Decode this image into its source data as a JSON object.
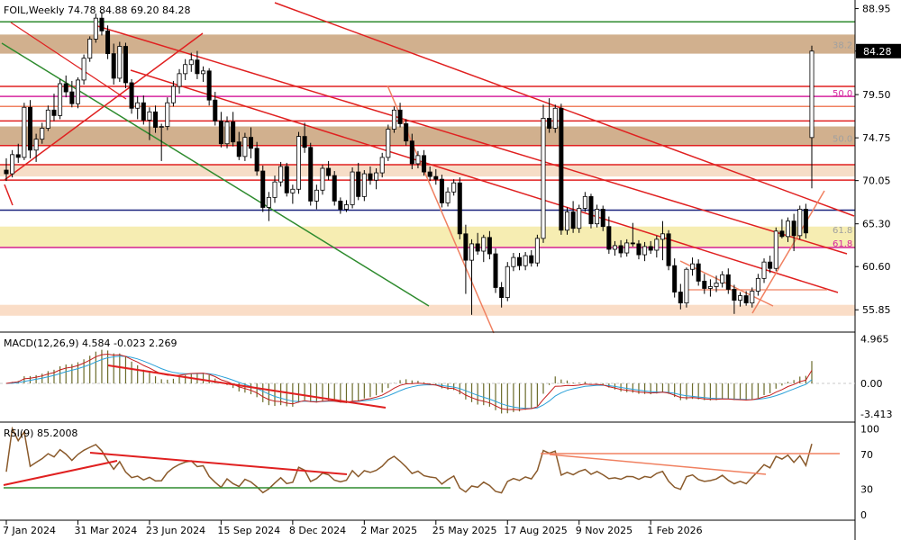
{
  "chart_data": [
    {
      "type": "candlestick",
      "panel": "price",
      "title": "FOIL,Weekly",
      "ohlc_header": [
        "74.78",
        "84.88",
        "69.20",
        "84.28"
      ],
      "ylim": [
        53.5,
        89.5
      ],
      "price_ticks": [
        88.95,
        84.28,
        79.5,
        74.75,
        70.05,
        65.3,
        60.6,
        55.85
      ],
      "price_tick_labels": [
        "88.95",
        "84.28",
        "79.50",
        "74.75",
        "70.05",
        "65.30",
        "60.60",
        "55.85"
      ],
      "current_price": 84.28,
      "current_price_label": "84.28",
      "fib_labels": [
        {
          "text": "38.2",
          "price": 84.9,
          "color": "#a0a0a0"
        },
        {
          "text": "50.0",
          "price": 79.6,
          "color": "#d6249f"
        },
        {
          "text": "50.0",
          "price": 74.6,
          "color": "#a0a0a0"
        },
        {
          "text": "61.8",
          "price": 64.6,
          "color": "#a0a0a0"
        },
        {
          "text": "61.8",
          "price": 63.1,
          "color": "#d6249f"
        }
      ],
      "zones": [
        {
          "from": 84.0,
          "to": 86.1,
          "color": "#c9a27a"
        },
        {
          "from": 73.9,
          "to": 76.0,
          "color": "#c9a27a"
        },
        {
          "from": 70.5,
          "to": 71.8,
          "color": "#f5d7bd"
        },
        {
          "from": 62.6,
          "to": 65.0,
          "color": "#f4eaa5"
        },
        {
          "from": 55.2,
          "to": 56.4,
          "color": "#f9d7bd"
        }
      ],
      "hlines": [
        {
          "price": 87.5,
          "color": "#2e8b2e"
        },
        {
          "price": 80.4,
          "color": "#e02020"
        },
        {
          "price": 79.3,
          "color": "#d6249f"
        },
        {
          "price": 78.2,
          "color": "#f08060"
        },
        {
          "price": 76.6,
          "color": "#e02020"
        },
        {
          "price": 73.9,
          "color": "#e02020"
        },
        {
          "price": 71.8,
          "color": "#e02020"
        },
        {
          "price": 70.1,
          "color": "#e02020"
        },
        {
          "price": 66.8,
          "color": "#1a237e"
        },
        {
          "price": 62.7,
          "color": "#d6249f"
        }
      ],
      "candles": [
        [
          71.2,
          72.5,
          70.0,
          70.8
        ],
        [
          70.8,
          73.4,
          70.4,
          72.9
        ],
        [
          72.9,
          74.1,
          72.0,
          72.6
        ],
        [
          72.6,
          78.6,
          72.3,
          78.1
        ],
        [
          78.1,
          78.9,
          72.5,
          73.4
        ],
        [
          73.4,
          75.2,
          72.1,
          74.6
        ],
        [
          74.6,
          76.4,
          74.1,
          75.8
        ],
        [
          75.8,
          78.3,
          75.5,
          77.8
        ],
        [
          77.8,
          79.6,
          76.6,
          77.2
        ],
        [
          77.2,
          81.2,
          76.8,
          80.7
        ],
        [
          80.7,
          81.6,
          79.2,
          79.8
        ],
        [
          79.8,
          81.0,
          78.1,
          78.5
        ],
        [
          78.5,
          81.4,
          78.0,
          81.1
        ],
        [
          81.1,
          83.9,
          80.6,
          83.5
        ],
        [
          83.5,
          85.9,
          83.1,
          85.6
        ],
        [
          85.6,
          88.4,
          85.2,
          87.9
        ],
        [
          87.9,
          88.6,
          86.0,
          86.5
        ],
        [
          86.5,
          87.1,
          83.4,
          84.0
        ],
        [
          84.0,
          85.1,
          80.6,
          81.3
        ],
        [
          81.3,
          85.3,
          80.9,
          84.8
        ],
        [
          84.8,
          85.2,
          80.2,
          80.8
        ],
        [
          80.8,
          81.2,
          77.4,
          78.0
        ],
        [
          78.0,
          79.3,
          76.8,
          78.6
        ],
        [
          78.6,
          79.4,
          76.2,
          76.7
        ],
        [
          76.7,
          78.1,
          74.5,
          77.6
        ],
        [
          77.6,
          78.3,
          75.3,
          75.9
        ],
        [
          75.9,
          76.3,
          72.2,
          76.0
        ],
        [
          76.0,
          79.2,
          75.6,
          78.6
        ],
        [
          78.6,
          81.0,
          78.2,
          80.4
        ],
        [
          80.4,
          82.3,
          79.6,
          81.8
        ],
        [
          81.8,
          83.4,
          81.1,
          82.8
        ],
        [
          82.8,
          84.1,
          82.0,
          83.3
        ],
        [
          83.3,
          84.3,
          81.2,
          81.8
        ],
        [
          81.8,
          82.6,
          80.9,
          82.1
        ],
        [
          82.1,
          82.4,
          78.3,
          78.9
        ],
        [
          78.9,
          79.8,
          76.1,
          76.6
        ],
        [
          76.6,
          77.6,
          73.7,
          74.1
        ],
        [
          74.1,
          77.1,
          73.6,
          76.5
        ],
        [
          76.5,
          77.6,
          73.8,
          74.3
        ],
        [
          74.3,
          75.4,
          72.3,
          72.7
        ],
        [
          72.7,
          75.3,
          72.2,
          74.8
        ],
        [
          74.8,
          75.9,
          72.5,
          73.6
        ],
        [
          73.6,
          74.3,
          70.6,
          71.1
        ],
        [
          71.1,
          71.7,
          66.6,
          67.1
        ],
        [
          67.1,
          68.8,
          65.6,
          68.2
        ],
        [
          68.2,
          70.6,
          67.6,
          69.9
        ],
        [
          69.9,
          72.1,
          69.4,
          71.6
        ],
        [
          71.6,
          72.0,
          68.3,
          68.7
        ],
        [
          68.7,
          69.6,
          67.5,
          69.1
        ],
        [
          69.1,
          75.4,
          68.6,
          74.9
        ],
        [
          74.9,
          76.4,
          73.1,
          73.7
        ],
        [
          73.7,
          74.2,
          67.3,
          67.8
        ],
        [
          67.8,
          69.6,
          66.9,
          69.0
        ],
        [
          69.0,
          71.8,
          68.5,
          71.4
        ],
        [
          71.4,
          72.2,
          70.1,
          70.6
        ],
        [
          70.6,
          71.1,
          67.3,
          67.8
        ],
        [
          67.8,
          68.2,
          66.4,
          66.9
        ],
        [
          66.9,
          67.9,
          66.6,
          67.4
        ],
        [
          67.4,
          71.5,
          67.0,
          71.0
        ],
        [
          71.0,
          72.0,
          67.9,
          68.3
        ],
        [
          68.3,
          71.2,
          67.8,
          70.8
        ],
        [
          70.8,
          71.6,
          69.6,
          70.1
        ],
        [
          70.1,
          71.4,
          69.1,
          70.9
        ],
        [
          70.9,
          73.1,
          70.4,
          72.6
        ],
        [
          72.6,
          76.2,
          72.2,
          75.7
        ],
        [
          75.7,
          78.2,
          75.3,
          77.8
        ],
        [
          77.8,
          78.6,
          75.9,
          76.3
        ],
        [
          76.3,
          76.8,
          73.9,
          74.4
        ],
        [
          74.4,
          75.2,
          71.3,
          71.9
        ],
        [
          71.9,
          73.3,
          71.4,
          72.8
        ],
        [
          72.8,
          73.4,
          70.6,
          71.0
        ],
        [
          71.0,
          71.6,
          70.0,
          70.5
        ],
        [
          70.5,
          71.3,
          69.6,
          70.2
        ],
        [
          70.2,
          70.7,
          67.1,
          67.6
        ],
        [
          67.6,
          69.3,
          67.2,
          68.8
        ],
        [
          68.8,
          70.2,
          68.4,
          69.8
        ],
        [
          69.8,
          70.4,
          63.6,
          64.2
        ],
        [
          64.2,
          65.2,
          57.6,
          61.3
        ],
        [
          61.3,
          63.6,
          55.3,
          63.1
        ],
        [
          63.1,
          64.3,
          61.9,
          62.3
        ],
        [
          62.3,
          64.1,
          61.1,
          63.8
        ],
        [
          63.8,
          64.5,
          61.4,
          62.0
        ],
        [
          62.0,
          62.6,
          57.7,
          58.3
        ],
        [
          58.3,
          58.9,
          56.1,
          57.2
        ],
        [
          57.2,
          61.1,
          56.8,
          60.6
        ],
        [
          60.6,
          62.1,
          60.1,
          61.6
        ],
        [
          61.6,
          62.1,
          60.2,
          60.7
        ],
        [
          60.7,
          62.2,
          60.2,
          61.8
        ],
        [
          61.8,
          62.4,
          60.6,
          61.0
        ],
        [
          61.0,
          64.1,
          60.6,
          63.7
        ],
        [
          63.7,
          78.4,
          63.2,
          76.9
        ],
        [
          76.9,
          79.1,
          75.3,
          75.8
        ],
        [
          75.8,
          78.4,
          75.3,
          78.0
        ],
        [
          78.0,
          78.5,
          64.1,
          64.6
        ],
        [
          64.6,
          67.1,
          64.1,
          66.6
        ],
        [
          66.6,
          67.8,
          64.3,
          64.8
        ],
        [
          64.8,
          67.4,
          64.3,
          67.0
        ],
        [
          67.0,
          68.8,
          66.6,
          68.3
        ],
        [
          68.3,
          68.6,
          64.8,
          65.3
        ],
        [
          65.3,
          67.4,
          64.9,
          66.9
        ],
        [
          66.9,
          67.3,
          64.5,
          65.0
        ],
        [
          65.0,
          66.1,
          62.0,
          62.5
        ],
        [
          62.5,
          63.4,
          61.8,
          62.9
        ],
        [
          62.9,
          63.5,
          61.6,
          62.1
        ],
        [
          62.1,
          63.6,
          61.7,
          63.2
        ],
        [
          63.2,
          65.4,
          62.8,
          63.1
        ],
        [
          63.1,
          63.5,
          61.4,
          61.9
        ],
        [
          61.9,
          63.3,
          61.2,
          62.8
        ],
        [
          62.8,
          63.4,
          62.0,
          62.4
        ],
        [
          62.4,
          64.0,
          61.6,
          63.6
        ],
        [
          63.6,
          65.6,
          61.3,
          64.2
        ],
        [
          64.2,
          64.6,
          60.2,
          60.7
        ],
        [
          60.7,
          61.5,
          57.2,
          57.8
        ],
        [
          57.8,
          58.7,
          55.9,
          56.6
        ],
        [
          56.6,
          60.5,
          56.1,
          60.3
        ],
        [
          60.3,
          61.6,
          59.6,
          60.9
        ],
        [
          60.9,
          61.4,
          58.5,
          59.0
        ],
        [
          59.0,
          59.8,
          57.6,
          58.2
        ],
        [
          58.2,
          59.2,
          57.3,
          58.4
        ],
        [
          58.4,
          59.6,
          57.8,
          58.8
        ],
        [
          58.8,
          60.1,
          58.3,
          59.7
        ],
        [
          59.7,
          60.4,
          57.6,
          58.1
        ],
        [
          58.1,
          58.6,
          55.4,
          56.9
        ],
        [
          56.9,
          57.8,
          56.2,
          57.4
        ],
        [
          57.4,
          57.9,
          56.3,
          56.6
        ],
        [
          56.6,
          58.3,
          56.1,
          57.9
        ],
        [
          57.9,
          59.8,
          57.4,
          59.3
        ],
        [
          59.3,
          61.5,
          58.8,
          61.1
        ],
        [
          61.1,
          61.8,
          59.9,
          60.4
        ],
        [
          60.4,
          64.9,
          60.1,
          64.5
        ],
        [
          64.5,
          65.8,
          63.7,
          63.9
        ],
        [
          63.9,
          66.0,
          63.3,
          65.6
        ],
        [
          65.6,
          66.4,
          62.3,
          64.0
        ],
        [
          64.0,
          67.3,
          63.6,
          66.9
        ],
        [
          66.9,
          67.5,
          63.7,
          64.3
        ],
        [
          74.78,
          84.88,
          69.2,
          84.28
        ]
      ]
    },
    {
      "type": "macd",
      "panel": "macd",
      "label": "MACD(12,26,9) 4.584 -0.023 2.269",
      "ylim": [
        -4.0,
        5.4
      ],
      "tick_labels": [
        "4.965",
        "0.00",
        "-3.413"
      ],
      "ticks": [
        4.965,
        0.0,
        -3.413
      ],
      "histogram_color": "#6b6b2a",
      "main_color": "#c41e1e",
      "signal_color": "#2aa0d8"
    },
    {
      "type": "rsi",
      "panel": "rsi",
      "label": "RSI(9) 85.2008",
      "ylim": [
        0,
        100
      ],
      "tick_labels": [
        "100",
        "70",
        "30",
        "0"
      ],
      "ticks": [
        100,
        70,
        30,
        0
      ],
      "line_color": "#8a5a2b"
    },
    {
      "type": "x_axis",
      "date_labels": [
        {
          "text": "7 Jan 2024",
          "bar": 0
        },
        {
          "text": "31 Mar 2024",
          "bar": 12
        },
        {
          "text": "23 Jun 2024",
          "bar": 24
        },
        {
          "text": "15 Sep 2024",
          "bar": 36
        },
        {
          "text": "8 Dec 2024",
          "bar": 48
        },
        {
          "text": "2 Mar 2025",
          "bar": 60
        },
        {
          "text": "25 May 2025",
          "bar": 72
        },
        {
          "text": "17 Aug 2025",
          "bar": 84
        },
        {
          "text": "9 Nov 2025",
          "bar": 96
        },
        {
          "text": "1 Feb 2026",
          "bar": 108
        }
      ]
    }
  ]
}
